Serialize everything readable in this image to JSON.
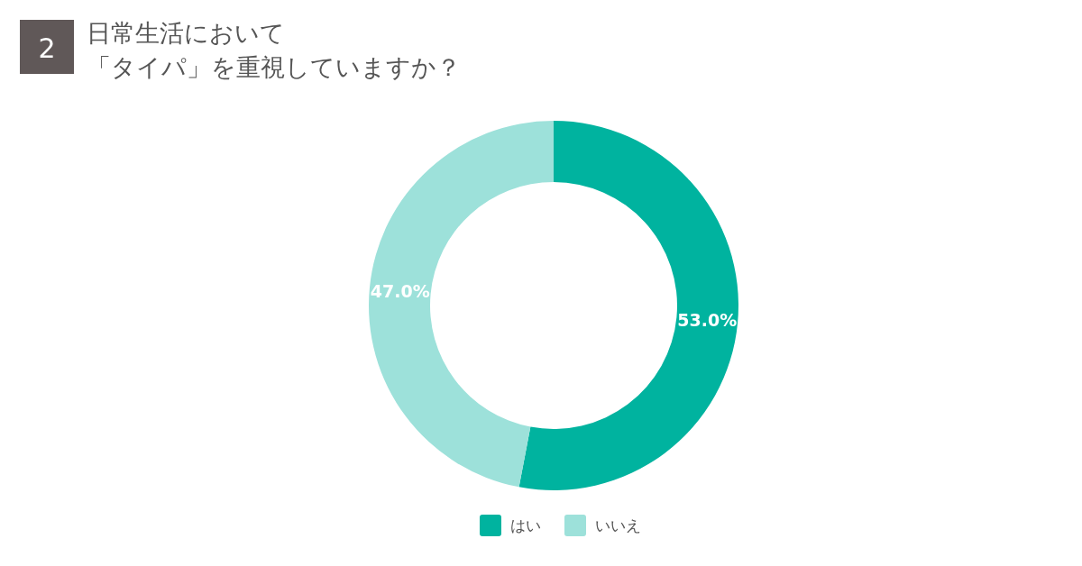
{
  "chart_data": {
    "type": "donut",
    "title": "日常生活において",
    "subtitle": "「タイパ」を重視していますか？",
    "annotations": [
      "2"
    ],
    "categories": [
      "はい",
      "いいえ"
    ],
    "values": [
      53.0,
      47.0
    ],
    "colors": [
      "#00b39f",
      "#9de1da"
    ],
    "value_labels": [
      "53.0%",
      "47.0%"
    ],
    "legend": "bottom"
  }
}
